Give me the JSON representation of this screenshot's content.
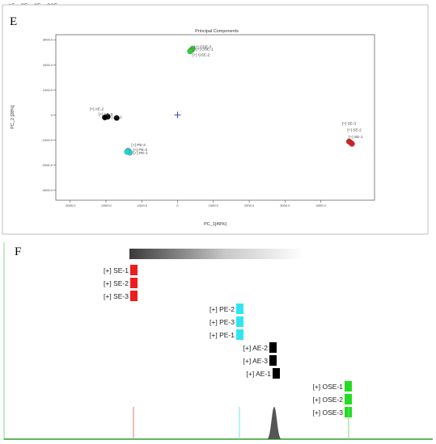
{
  "legend": {
    "items": [
      {
        "label": "AE",
        "color": "#000000"
      },
      {
        "label": "PE",
        "color": "#1fd7d7"
      },
      {
        "label": "SE",
        "color": "#e11b1b"
      },
      {
        "label": "OSE",
        "color": "#2ed12e"
      }
    ]
  },
  "panel_e": {
    "letter": "E"
  },
  "panel_f": {
    "letter": "F"
  },
  "chart_data": [
    {
      "type": "scatter",
      "title": "Principal Components",
      "xlabel": "PC_1[49%]",
      "ylabel": "PC_2 [28%]",
      "xlim": [
        -3400,
        5500
      ],
      "ylim": [
        -3400,
        3200
      ],
      "xticks": [
        -3000,
        -2000,
        -1000,
        0,
        1000,
        2000,
        3000,
        4000
      ],
      "xtick_labels": [
        "-3000.0",
        "-2000.0",
        "-1000.0",
        "0",
        "1000.0",
        "2000.0",
        "3000.0",
        "4000.0"
      ],
      "yticks": [
        3000,
        2000,
        1000,
        0,
        -1000,
        -2000,
        -3000
      ],
      "ytick_labels": [
        "3000.0",
        "2000.0",
        "1000.0",
        "0",
        "-1000.0",
        "-2000.0",
        "-3000.0"
      ],
      "center_marker": {
        "x": 0,
        "y": 0
      },
      "series": [
        {
          "name": "AE",
          "color": "#000000",
          "points": [
            {
              "label": "[+] AE-2",
              "x": -1950,
              "y": -70
            },
            {
              "label": "[+] AE-3",
              "x": -1700,
              "y": -120
            },
            {
              "label": "[+] AE-1",
              "x": -2030,
              "y": -100
            }
          ]
        },
        {
          "name": "PE",
          "color": "#1fd7d7",
          "points": [
            {
              "label": "[+] PE-2",
              "x": -1380,
              "y": -1430
            },
            {
              "label": "[+] PE-3",
              "x": -1330,
              "y": -1500
            },
            {
              "label": "[+] PE-1",
              "x": -1410,
              "y": -1470
            }
          ]
        },
        {
          "name": "SE",
          "color": "#e11b1b",
          "points": [
            {
              "label": "[+] SE-3",
              "x": 4790,
              "y": -1060
            },
            {
              "label": "[+] SE-2",
              "x": 4830,
              "y": -1100
            },
            {
              "label": "[+] SE-1",
              "x": 4870,
              "y": -1150
            }
          ]
        },
        {
          "name": "OSE",
          "color": "#2ed12e",
          "points": [
            {
              "label": "[+] OSE-3",
              "x": 420,
              "y": 2640
            },
            {
              "label": "[+] OSE-1",
              "x": 380,
              "y": 2580
            },
            {
              "label": "[+] OSE-2",
              "x": 350,
              "y": 2540
            }
          ]
        }
      ]
    },
    {
      "type": "bar",
      "title": "",
      "groups": [
        {
          "name": "SE",
          "color": "#ee1d1d",
          "items": [
            "[+] SE-1",
            "[+] SE-2",
            "[+] SE-3"
          ]
        },
        {
          "name": "PE",
          "color": "#2ee6ee",
          "items": [
            "[+] PE-2",
            "[+] PE-3",
            "[+] PE-1"
          ]
        },
        {
          "name": "AE",
          "color": "#000000",
          "items": [
            "[+] AE-2",
            "[+] AE-3",
            "[+] AE-1"
          ]
        },
        {
          "name": "OSE",
          "color": "#22dd22",
          "items": [
            "[+] OSE-1",
            "[+] OSE-2",
            "[+] OSE-3"
          ]
        }
      ],
      "baseline_markers": [
        {
          "group": "SE",
          "color": "#ee7777"
        },
        {
          "group": "PE",
          "color": "#6ee6ee"
        },
        {
          "group": "AE",
          "color": "#555555",
          "shape": "peak"
        },
        {
          "group": "OSE",
          "color": "#77dd77"
        }
      ]
    }
  ]
}
